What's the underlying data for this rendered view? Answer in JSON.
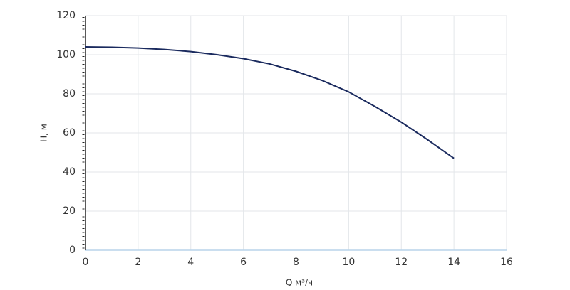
{
  "chart_data": {
    "type": "line",
    "x_label": "Q м³/ч",
    "y_label": "H, м",
    "x": [
      0,
      1,
      2,
      3,
      4,
      5,
      6,
      7,
      8,
      9,
      10,
      11,
      12,
      13,
      14
    ],
    "series": [
      {
        "color": "#1a2a5e",
        "values": [
          104,
          103.8,
          103.4,
          102.7,
          101.6,
          100,
          98,
          95.3,
          91.5,
          86.8,
          81,
          73.5,
          65.5,
          56.5,
          47
        ]
      }
    ],
    "xlim": [
      0,
      16
    ],
    "xticks": [
      0,
      2,
      4,
      6,
      8,
      10,
      12,
      14,
      16
    ],
    "ylim": [
      0,
      120
    ],
    "yticks": [
      0,
      20,
      40,
      60,
      80,
      100,
      120
    ],
    "grid": true
  }
}
